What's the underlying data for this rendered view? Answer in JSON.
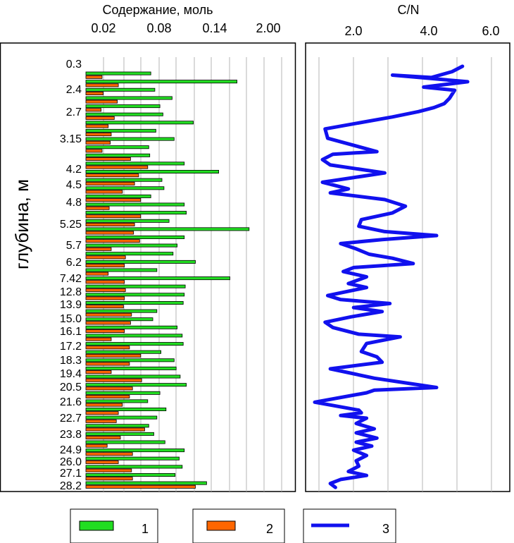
{
  "left_panel": {
    "axis_title": "Содержание, моль",
    "tick_labels": [
      "0.02",
      "0.08",
      "0.14",
      "2.00"
    ],
    "ylabel": "глубина, м",
    "depth_labels": [
      "0.3",
      "2.4",
      "2.7",
      "3.15",
      "4.2",
      "4.5",
      "4.8",
      "5.25",
      "5.7",
      "6.2",
      "7.42",
      "12.8",
      "13.9",
      "15.0",
      "16.1",
      "17.2",
      "18.3",
      "19.4",
      "20.5",
      "21.6",
      "22.7",
      "23.8",
      "24.9",
      "26.0",
      "27.1",
      "28.2"
    ]
  },
  "right_panel": {
    "axis_title": "C/N",
    "tick_labels": [
      "2.0",
      "4.0",
      "6.0"
    ]
  },
  "legend": {
    "items": [
      {
        "label": "1",
        "color": "#22dd22"
      },
      {
        "label": "2",
        "color": "#ff6600"
      },
      {
        "label": "3",
        "color": "#1111ee"
      }
    ]
  },
  "chart_data": [
    {
      "type": "bar",
      "orientation": "horizontal",
      "xlabel": "Содержание, моль",
      "ylabel": "глубина, м",
      "x_tick_labels": [
        "0.02",
        "0.08",
        "0.14",
        "2.00"
      ],
      "grid": true,
      "series": [
        {
          "name": "1",
          "color": "#22dd22",
          "values": [
            0.064,
            0.149,
            0.068,
            0.085,
            0.073,
            0.076,
            0.106,
            0.069,
            0.087,
            0.062,
            0.063,
            0.097,
            0.131,
            0.075,
            0.077,
            0.064,
            0.097,
            0.099,
            0.082,
            0.161,
            0.097,
            0.09,
            0.086,
            0.108,
            0.07,
            0.142,
            0.098,
            0.097,
            0.096,
            0.07,
            0.066,
            0.09,
            0.095,
            0.096,
            0.074,
            0.087,
            0.089,
            0.093,
            0.099,
            0.073,
            0.061,
            0.079,
            0.07,
            0.062,
            0.067,
            0.078,
            0.097,
            0.092,
            0.095,
            0.088,
            0.119
          ]
        },
        {
          "name": "2",
          "color": "#ff6600",
          "values": [
            0.016,
            0.032,
            0.017,
            0.031,
            0.015,
            0.028,
            0.022,
            0.025,
            0.024,
            0.016,
            0.044,
            0.061,
            0.052,
            0.048,
            0.036,
            0.054,
            0.023,
            0.054,
            0.048,
            0.047,
            0.053,
            0.025,
            0.039,
            0.038,
            0.022,
            0.038,
            0.039,
            0.038,
            0.037,
            0.045,
            0.044,
            0.038,
            0.025,
            0.043,
            0.054,
            0.043,
            0.025,
            0.055,
            0.046,
            0.043,
            0.036,
            0.032,
            0.03,
            0.058,
            0.034,
            0.021,
            0.046,
            0.032,
            0.045,
            0.046,
            0.108
          ]
        }
      ]
    },
    {
      "type": "line",
      "xlabel": "C/N",
      "x_tick_labels": [
        "2.0",
        "4.0",
        "6.0"
      ],
      "xlim": [
        0,
        7.4
      ],
      "grid": true,
      "series": [
        {
          "name": "3",
          "color": "#1111ee",
          "points": [
            [
              5.7,
              0.0
            ],
            [
              5.3,
              2.0
            ],
            [
              4.5,
              4.2
            ],
            [
              3.0,
              3.3
            ],
            [
              5.9,
              5.8
            ],
            [
              4.2,
              7.8
            ],
            [
              5.4,
              9.0
            ],
            [
              5.2,
              12.0
            ],
            [
              5.0,
              14.0
            ],
            [
              4.6,
              15.5
            ],
            [
              4.0,
              17.0
            ],
            [
              3.0,
              19.0
            ],
            [
              0.4,
              23.5
            ],
            [
              0.5,
              27.0
            ],
            [
              2.4,
              32.0
            ],
            [
              0.7,
              33.0
            ],
            [
              0.3,
              35.0
            ],
            [
              0.6,
              37.0
            ],
            [
              2.7,
              40.0
            ],
            [
              0.3,
              43.5
            ],
            [
              0.9,
              45.0
            ],
            [
              1.3,
              46.0
            ],
            [
              0.6,
              47.5
            ],
            [
              2.7,
              50.0
            ],
            [
              3.5,
              52.5
            ],
            [
              3.0,
              55.0
            ],
            [
              1.8,
              57.5
            ],
            [
              1.7,
              60.0
            ],
            [
              2.7,
              62.0
            ],
            [
              4.7,
              63.5
            ],
            [
              2.6,
              65.0
            ],
            [
              1.0,
              66.5
            ],
            [
              1.6,
              68.5
            ],
            [
              2.1,
              70.5
            ],
            [
              3.0,
              72.0
            ],
            [
              3.8,
              74.0
            ],
            [
              1.5,
              75.5
            ],
            [
              1.1,
              77.0
            ],
            [
              2.0,
              79.0
            ],
            [
              1.3,
              81.5
            ],
            [
              2.0,
              83.0
            ],
            [
              0.5,
              86.0
            ],
            [
              1.0,
              87.5
            ],
            [
              2.9,
              89.0
            ],
            [
              1.5,
              90.5
            ],
            [
              2.6,
              92.0
            ],
            [
              1.4,
              94.0
            ],
            [
              0.4,
              96.0
            ],
            [
              0.7,
              98.0
            ],
            [
              1.7,
              100.5
            ],
            [
              3.3,
              101.5
            ],
            [
              2.0,
              104.0
            ],
            [
              1.8,
              107.0
            ],
            [
              2.4,
              109.0
            ],
            [
              2.6,
              111.0
            ],
            [
              0.6,
              113.5
            ],
            [
              2.3,
              117.0
            ],
            [
              4.7,
              120.5
            ],
            [
              2.3,
              121.5
            ],
            [
              2.0,
              122.5
            ],
            [
              0.0,
              126.0
            ],
            [
              1.7,
              129.0
            ],
            [
              1.8,
              130.0
            ],
            [
              1.0,
              131.0
            ],
            [
              2.0,
              132.0
            ],
            [
              1.8,
              133.0
            ],
            [
              1.6,
              134.0
            ],
            [
              2.3,
              136.0
            ],
            [
              1.6,
              137.5
            ],
            [
              2.4,
              139.5
            ],
            [
              1.6,
              141.0
            ],
            [
              2.2,
              142.5
            ],
            [
              1.5,
              144.0
            ],
            [
              2.0,
              146.0
            ],
            [
              1.6,
              148.0
            ],
            [
              1.7,
              150.0
            ],
            [
              1.3,
              152.0
            ],
            [
              2.0,
              153.5
            ],
            [
              1.0,
              155.0
            ],
            [
              0.6,
              156.5
            ],
            [
              0.8,
              158.0
            ]
          ]
        }
      ]
    }
  ]
}
